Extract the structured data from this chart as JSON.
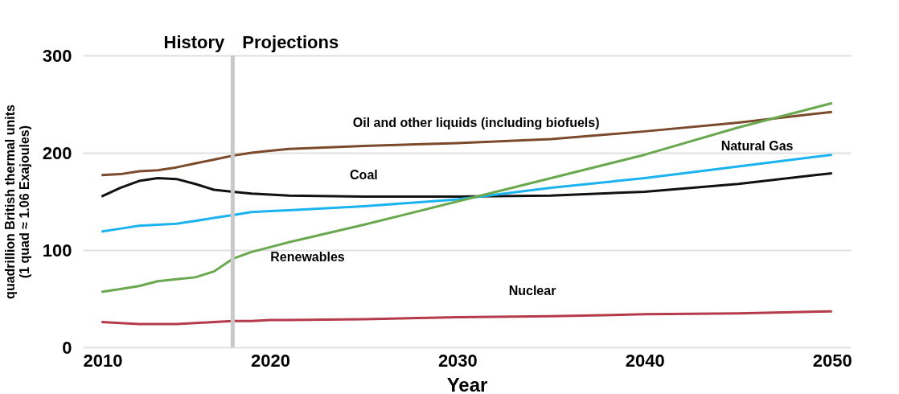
{
  "chart_data": {
    "type": "line",
    "xlabel": "Year",
    "ylabel": "quadrillion British thermal units\n(1 quad ≈ 1.06 Exajoules)",
    "x": [
      2011,
      2012,
      2013,
      2014,
      2015,
      2016,
      2017,
      2018,
      2019,
      2020,
      2021,
      2025,
      2030,
      2035,
      2040,
      2045,
      2050
    ],
    "series": [
      {
        "name": "Oil and other liquids (including biofuels)",
        "color": "#7b4a2a",
        "values": [
          177,
          178,
          181,
          182,
          185,
          189,
          193,
          197,
          200,
          202,
          204,
          207,
          210,
          214,
          222,
          231,
          242
        ]
      },
      {
        "name": "Coal",
        "color": "#111111",
        "values": [
          155,
          164,
          171,
          174,
          173,
          168,
          162,
          160,
          158,
          157,
          156,
          155,
          155,
          156,
          160,
          168,
          179
        ]
      },
      {
        "name": "Natural Gas",
        "color": "#1ab2ef",
        "values": [
          119,
          122,
          125,
          126,
          127,
          130,
          133,
          136,
          139,
          140,
          141,
          145,
          152,
          164,
          174,
          186,
          198
        ]
      },
      {
        "name": "Renewables",
        "color": "#6aa84f",
        "values": [
          57,
          60,
          63,
          68,
          70,
          72,
          78,
          91,
          98,
          103,
          108,
          126,
          150,
          174,
          198,
          226,
          251
        ]
      },
      {
        "name": "Nuclear",
        "color": "#b53a4a",
        "values": [
          26,
          25,
          24,
          24,
          24,
          25,
          26,
          27,
          27,
          28,
          28,
          29,
          31,
          32,
          34,
          35,
          37
        ]
      }
    ],
    "xlim": [
      2010,
      2051
    ],
    "xticks": [
      2010,
      2020,
      2030,
      2040,
      2050
    ],
    "ylim": [
      0,
      300
    ],
    "yticks": [
      0,
      100,
      200,
      300
    ],
    "grid": "y",
    "legend": false,
    "ref_lines": [
      {
        "axis": "x",
        "value": 2018,
        "color": "#c8c8c8"
      }
    ],
    "annotations": [
      "History",
      "Projections"
    ]
  }
}
